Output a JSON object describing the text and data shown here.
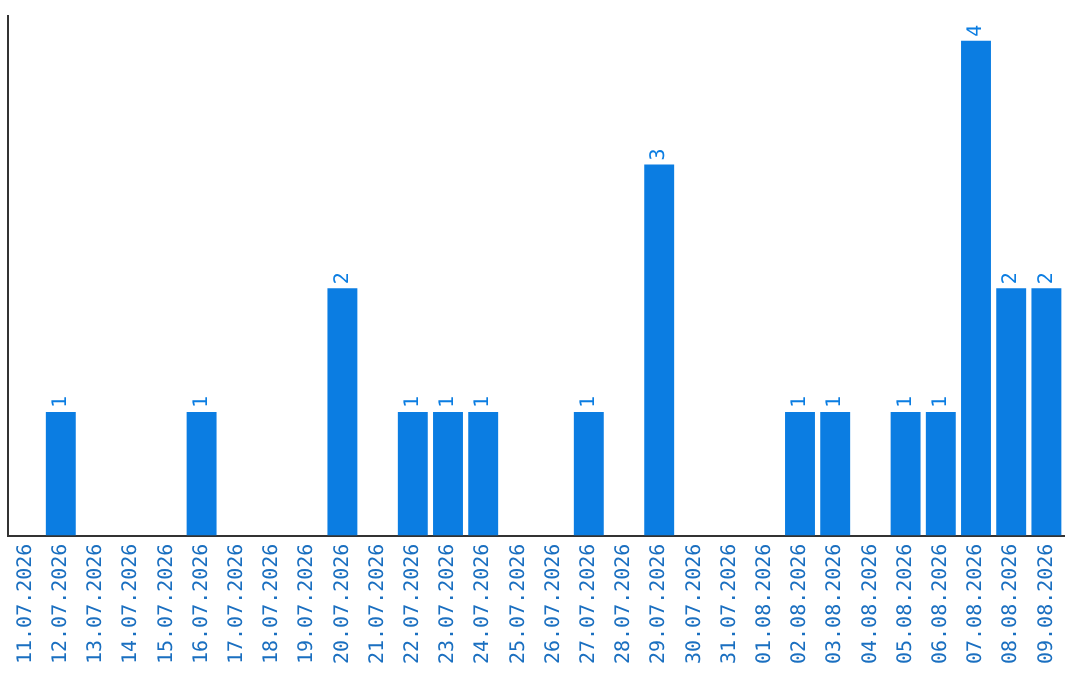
{
  "chart_data": {
    "type": "bar",
    "categories": [
      "11.07.2026",
      "12.07.2026",
      "13.07.2026",
      "14.07.2026",
      "15.07.2026",
      "16.07.2026",
      "17.07.2026",
      "18.07.2026",
      "19.07.2026",
      "20.07.2026",
      "21.07.2026",
      "22.07.2026",
      "23.07.2026",
      "24.07.2026",
      "25.07.2026",
      "26.07.2026",
      "27.07.2026",
      "28.07.2026",
      "29.07.2026",
      "30.07.2026",
      "31.07.2026",
      "01.08.2026",
      "02.08.2026",
      "03.08.2026",
      "04.08.2026",
      "05.08.2026",
      "06.08.2026",
      "07.08.2026",
      "08.08.2026",
      "09.08.2026"
    ],
    "values": [
      0,
      1,
      0,
      0,
      0,
      1,
      0,
      0,
      0,
      2,
      0,
      1,
      1,
      1,
      0,
      0,
      1,
      0,
      3,
      0,
      0,
      0,
      1,
      1,
      0,
      1,
      1,
      4,
      2,
      2
    ],
    "value_labels": [
      null,
      "1",
      null,
      null,
      null,
      "1",
      null,
      null,
      null,
      "2",
      null,
      "1",
      "1",
      "1",
      null,
      null,
      "1",
      null,
      "3",
      null,
      null,
      null,
      "1",
      "1",
      null,
      "1",
      "1",
      "4",
      "2",
      "2"
    ],
    "color": "#0b7de2",
    "ylim": [
      0,
      4.2
    ],
    "tick_labels": "x",
    "grid": false,
    "legend": false
  }
}
